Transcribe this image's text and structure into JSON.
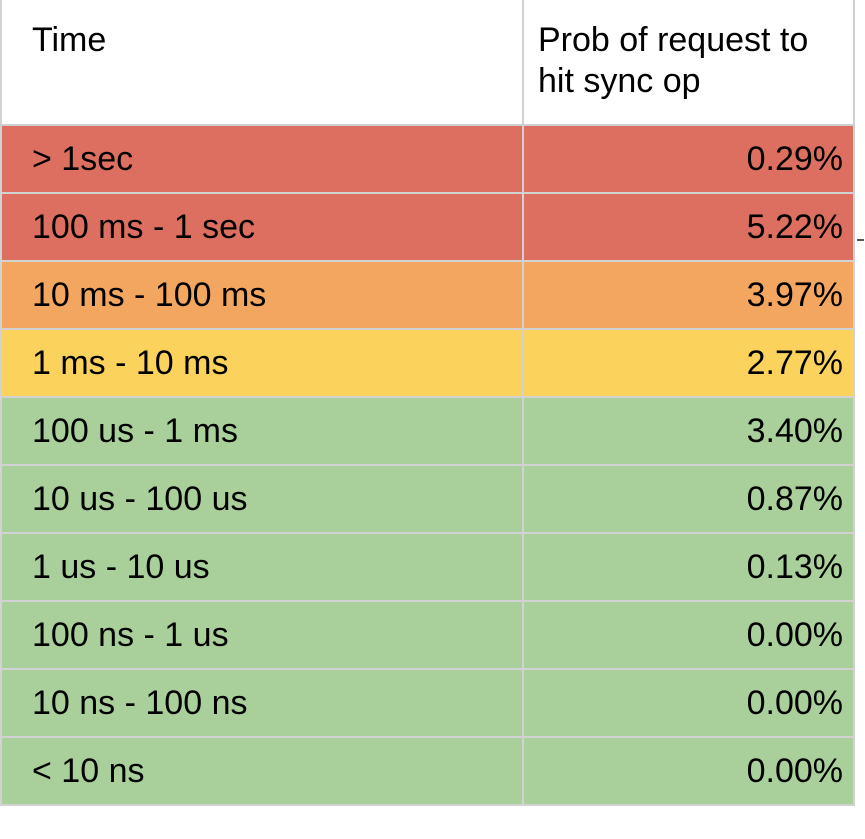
{
  "table": {
    "headers": {
      "time": "Time",
      "prob": "Prob of request to hit sync op"
    },
    "rows": [
      {
        "time": "> 1sec",
        "prob": "0.29%",
        "color": "#dd6f61"
      },
      {
        "time": "100 ms - 1 sec",
        "prob": "5.22%",
        "color": "#dd6f61"
      },
      {
        "time": "10 ms - 100 ms",
        "prob": "3.97%",
        "color": "#f2a65f"
      },
      {
        "time": "1 ms - 10 ms",
        "prob": "2.77%",
        "color": "#fad25c"
      },
      {
        "time": "100 us - 1 ms",
        "prob": "3.40%",
        "color": "#a9cf9b"
      },
      {
        "time": "10 us - 100 us",
        "prob": "0.87%",
        "color": "#a9cf9b"
      },
      {
        "time": "1 us - 10 us",
        "prob": "0.13%",
        "color": "#a9cf9b"
      },
      {
        "time": "100 ns - 1 us",
        "prob": "0.00%",
        "color": "#a9cf9b"
      },
      {
        "time": "10 ns - 100 ns",
        "prob": "0.00%",
        "color": "#a9cf9b"
      },
      {
        "time": "< 10 ns",
        "prob": "0.00%",
        "color": "#a9cf9b"
      }
    ]
  }
}
